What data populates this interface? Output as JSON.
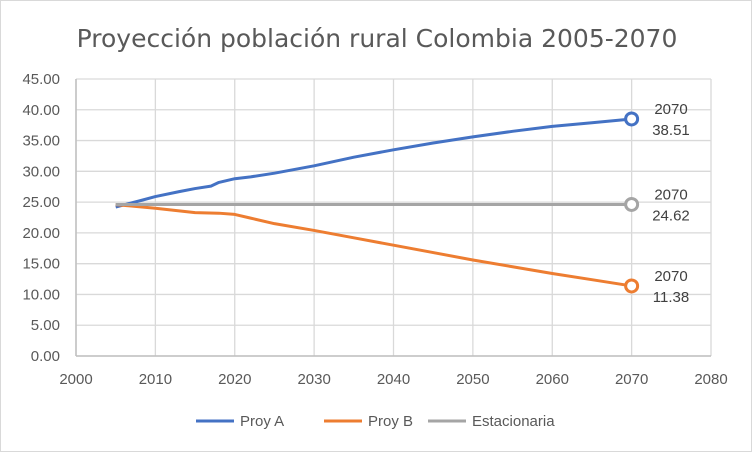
{
  "chart_data": {
    "type": "line",
    "title": "Proyección población rural Colombia 2005-2070",
    "xlabel": "",
    "ylabel": "",
    "xlim": [
      2000,
      2080
    ],
    "ylim": [
      0,
      45
    ],
    "x_ticks": [
      "2000",
      "2010",
      "2020",
      "2030",
      "2040",
      "2050",
      "2060",
      "2070",
      "2080"
    ],
    "y_ticks": [
      "0.00",
      "5.00",
      "10.00",
      "15.00",
      "20.00",
      "25.00",
      "30.00",
      "35.00",
      "40.00",
      "45.00"
    ],
    "grid": true,
    "legend": "bottom",
    "series": [
      {
        "name": "Proy A",
        "color": "#4472c4",
        "x": [
          2005,
          2008,
          2010,
          2013,
          2015,
          2017,
          2018,
          2020,
          2022,
          2025,
          2030,
          2035,
          2040,
          2045,
          2050,
          2055,
          2060,
          2065,
          2070
        ],
        "y": [
          24.2,
          25.2,
          25.9,
          26.7,
          27.2,
          27.6,
          28.2,
          28.8,
          29.1,
          29.7,
          30.9,
          32.3,
          33.5,
          34.6,
          35.6,
          36.5,
          37.3,
          37.9,
          38.51
        ]
      },
      {
        "name": "Proy B",
        "color": "#ed7d31",
        "x": [
          2005,
          2010,
          2015,
          2018,
          2020,
          2022,
          2025,
          2030,
          2035,
          2040,
          2045,
          2050,
          2055,
          2060,
          2065,
          2070
        ],
        "y": [
          24.6,
          24.0,
          23.3,
          23.2,
          23.0,
          22.4,
          21.5,
          20.4,
          19.2,
          18.0,
          16.8,
          15.6,
          14.5,
          13.4,
          12.4,
          11.38
        ]
      },
      {
        "name": "Estacionaria",
        "color": "#a5a5a5",
        "x": [
          2005,
          2070
        ],
        "y": [
          24.62,
          24.62
        ]
      }
    ],
    "annotations": [
      {
        "series": "Proy A",
        "year": "2070",
        "value": "38.51"
      },
      {
        "series": "Estacionaria",
        "year": "2070",
        "value": "24.62"
      },
      {
        "series": "Proy B",
        "year": "2070",
        "value": "11.38"
      }
    ]
  }
}
